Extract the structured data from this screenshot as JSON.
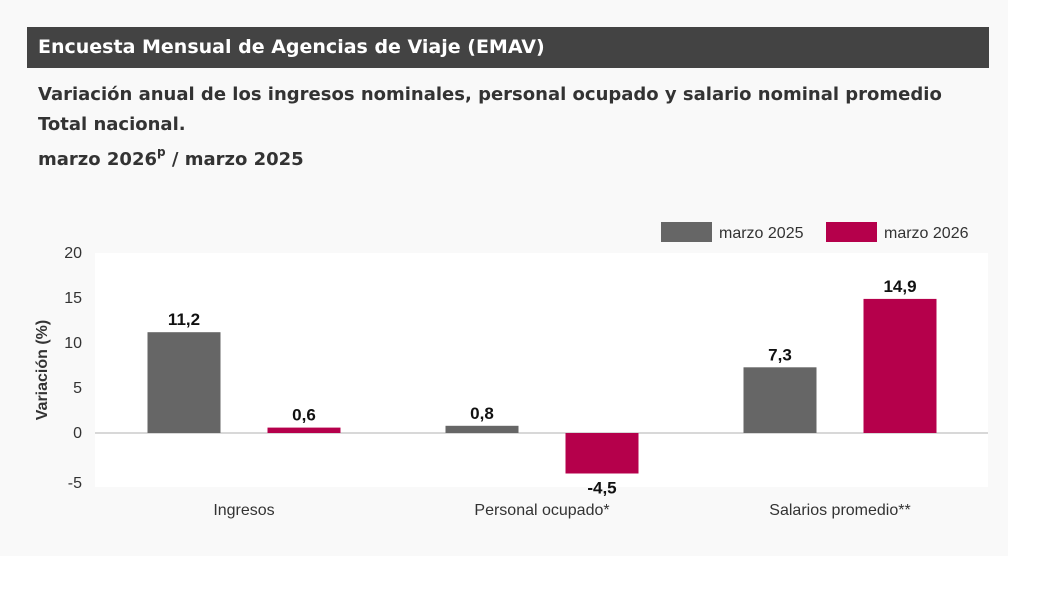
{
  "header": {
    "title": "Encuesta Mensual de Agencias de Viaje (EMAV)"
  },
  "subtitle": {
    "line1": "Variación anual de los ingresos nominales, personal ocupado y salario nominal promedio",
    "line2": "Total nacional.",
    "period_main": "marzo 2026",
    "period_sup": "p",
    "period_rest": " / marzo 2025"
  },
  "colors": {
    "series1": "#666666",
    "series2": "#b5004b",
    "header_bg": "#434343"
  },
  "chart_data": {
    "type": "bar",
    "categories": [
      "Ingresos",
      "Personal ocupado*",
      "Salarios promedio**"
    ],
    "series": [
      {
        "name": "marzo 2025",
        "values": [
          11.2,
          0.8,
          7.3
        ],
        "labels": [
          "11,2",
          "0,8",
          "7,3"
        ]
      },
      {
        "name": "marzo 2026",
        "values": [
          0.6,
          -4.5,
          14.9
        ],
        "labels": [
          "0,6",
          "-4,5",
          "14,9"
        ]
      }
    ],
    "ylabel": "Variación (%)",
    "xlabel": "",
    "ylim": [
      -5,
      20
    ],
    "yticks": [
      "20",
      "15",
      "10",
      "5",
      "0",
      "-5"
    ],
    "legend_position": "top-right",
    "grid": false
  }
}
